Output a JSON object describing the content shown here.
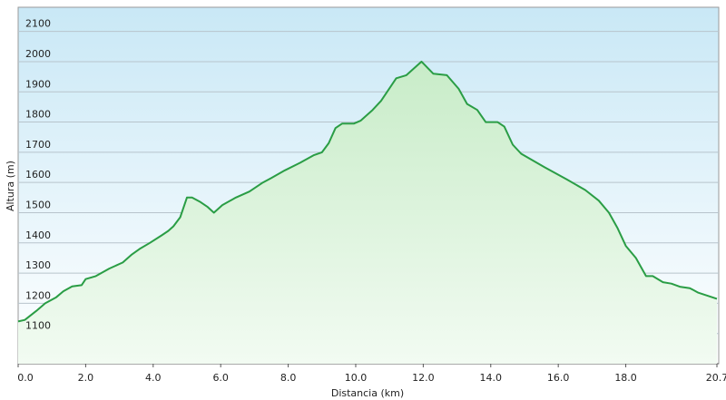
{
  "chart_data": {
    "type": "line",
    "x_label": "Distancia (km)",
    "y_label": "Altura (m)",
    "x": [
      0,
      0.2,
      0.54,
      0.8,
      1.13,
      1.34,
      1.6,
      1.88,
      2.0,
      2.3,
      2.7,
      3.1,
      3.35,
      3.6,
      3.9,
      4.25,
      4.45,
      4.6,
      4.8,
      5.0,
      5.15,
      5.4,
      5.6,
      5.8,
      6.05,
      6.45,
      6.85,
      7.25,
      7.5,
      7.9,
      8.35,
      8.75,
      9.0,
      9.2,
      9.4,
      9.6,
      9.95,
      10.15,
      10.5,
      10.75,
      11.2,
      11.5,
      11.95,
      12.3,
      12.7,
      13.05,
      13.3,
      13.6,
      13.85,
      14.2,
      14.4,
      14.65,
      14.9,
      15.6,
      16.25,
      16.8,
      17.2,
      17.5,
      17.75,
      18.0,
      18.3,
      18.6,
      18.8,
      19.1,
      19.35,
      19.6,
      19.9,
      20.15,
      20.7
    ],
    "series": [
      {
        "color": "#2a9d45",
        "values": [
          1140,
          1145,
          1175,
          1200,
          1220,
          1240,
          1256,
          1260,
          1280,
          1290,
          1315,
          1335,
          1360,
          1380,
          1400,
          1425,
          1440,
          1455,
          1485,
          1550,
          1550,
          1535,
          1520,
          1500,
          1525,
          1550,
          1570,
          1600,
          1615,
          1640,
          1665,
          1690,
          1700,
          1730,
          1780,
          1795,
          1795,
          1805,
          1840,
          1870,
          1945,
          1955,
          2000,
          1960,
          1955,
          1910,
          1860,
          1840,
          1800,
          1800,
          1785,
          1725,
          1695,
          1650,
          1610,
          1575,
          1540,
          1500,
          1450,
          1390,
          1350,
          1290,
          1290,
          1270,
          1265,
          1255,
          1250,
          1235,
          1215
        ]
      }
    ],
    "xlim": [
      0,
      20.7
    ],
    "ylim": [
      1000,
      2180
    ],
    "xticks": [
      {
        "value": 0,
        "label": "0.0"
      },
      {
        "value": 2,
        "label": "2.0"
      },
      {
        "value": 4,
        "label": "4.0"
      },
      {
        "value": 6,
        "label": "6.0"
      },
      {
        "value": 8,
        "label": "8.0"
      },
      {
        "value": 10,
        "label": "10.0"
      },
      {
        "value": 12,
        "label": "12.0"
      },
      {
        "value": 14,
        "label": "14.0"
      },
      {
        "value": 16,
        "label": "16.0"
      },
      {
        "value": 18,
        "label": "18.0"
      },
      20.7
    ],
    "yticks": [
      1100,
      1200,
      1300,
      1400,
      1500,
      1600,
      1700,
      1800,
      1900,
      2000,
      2100
    ],
    "grid": true
  }
}
